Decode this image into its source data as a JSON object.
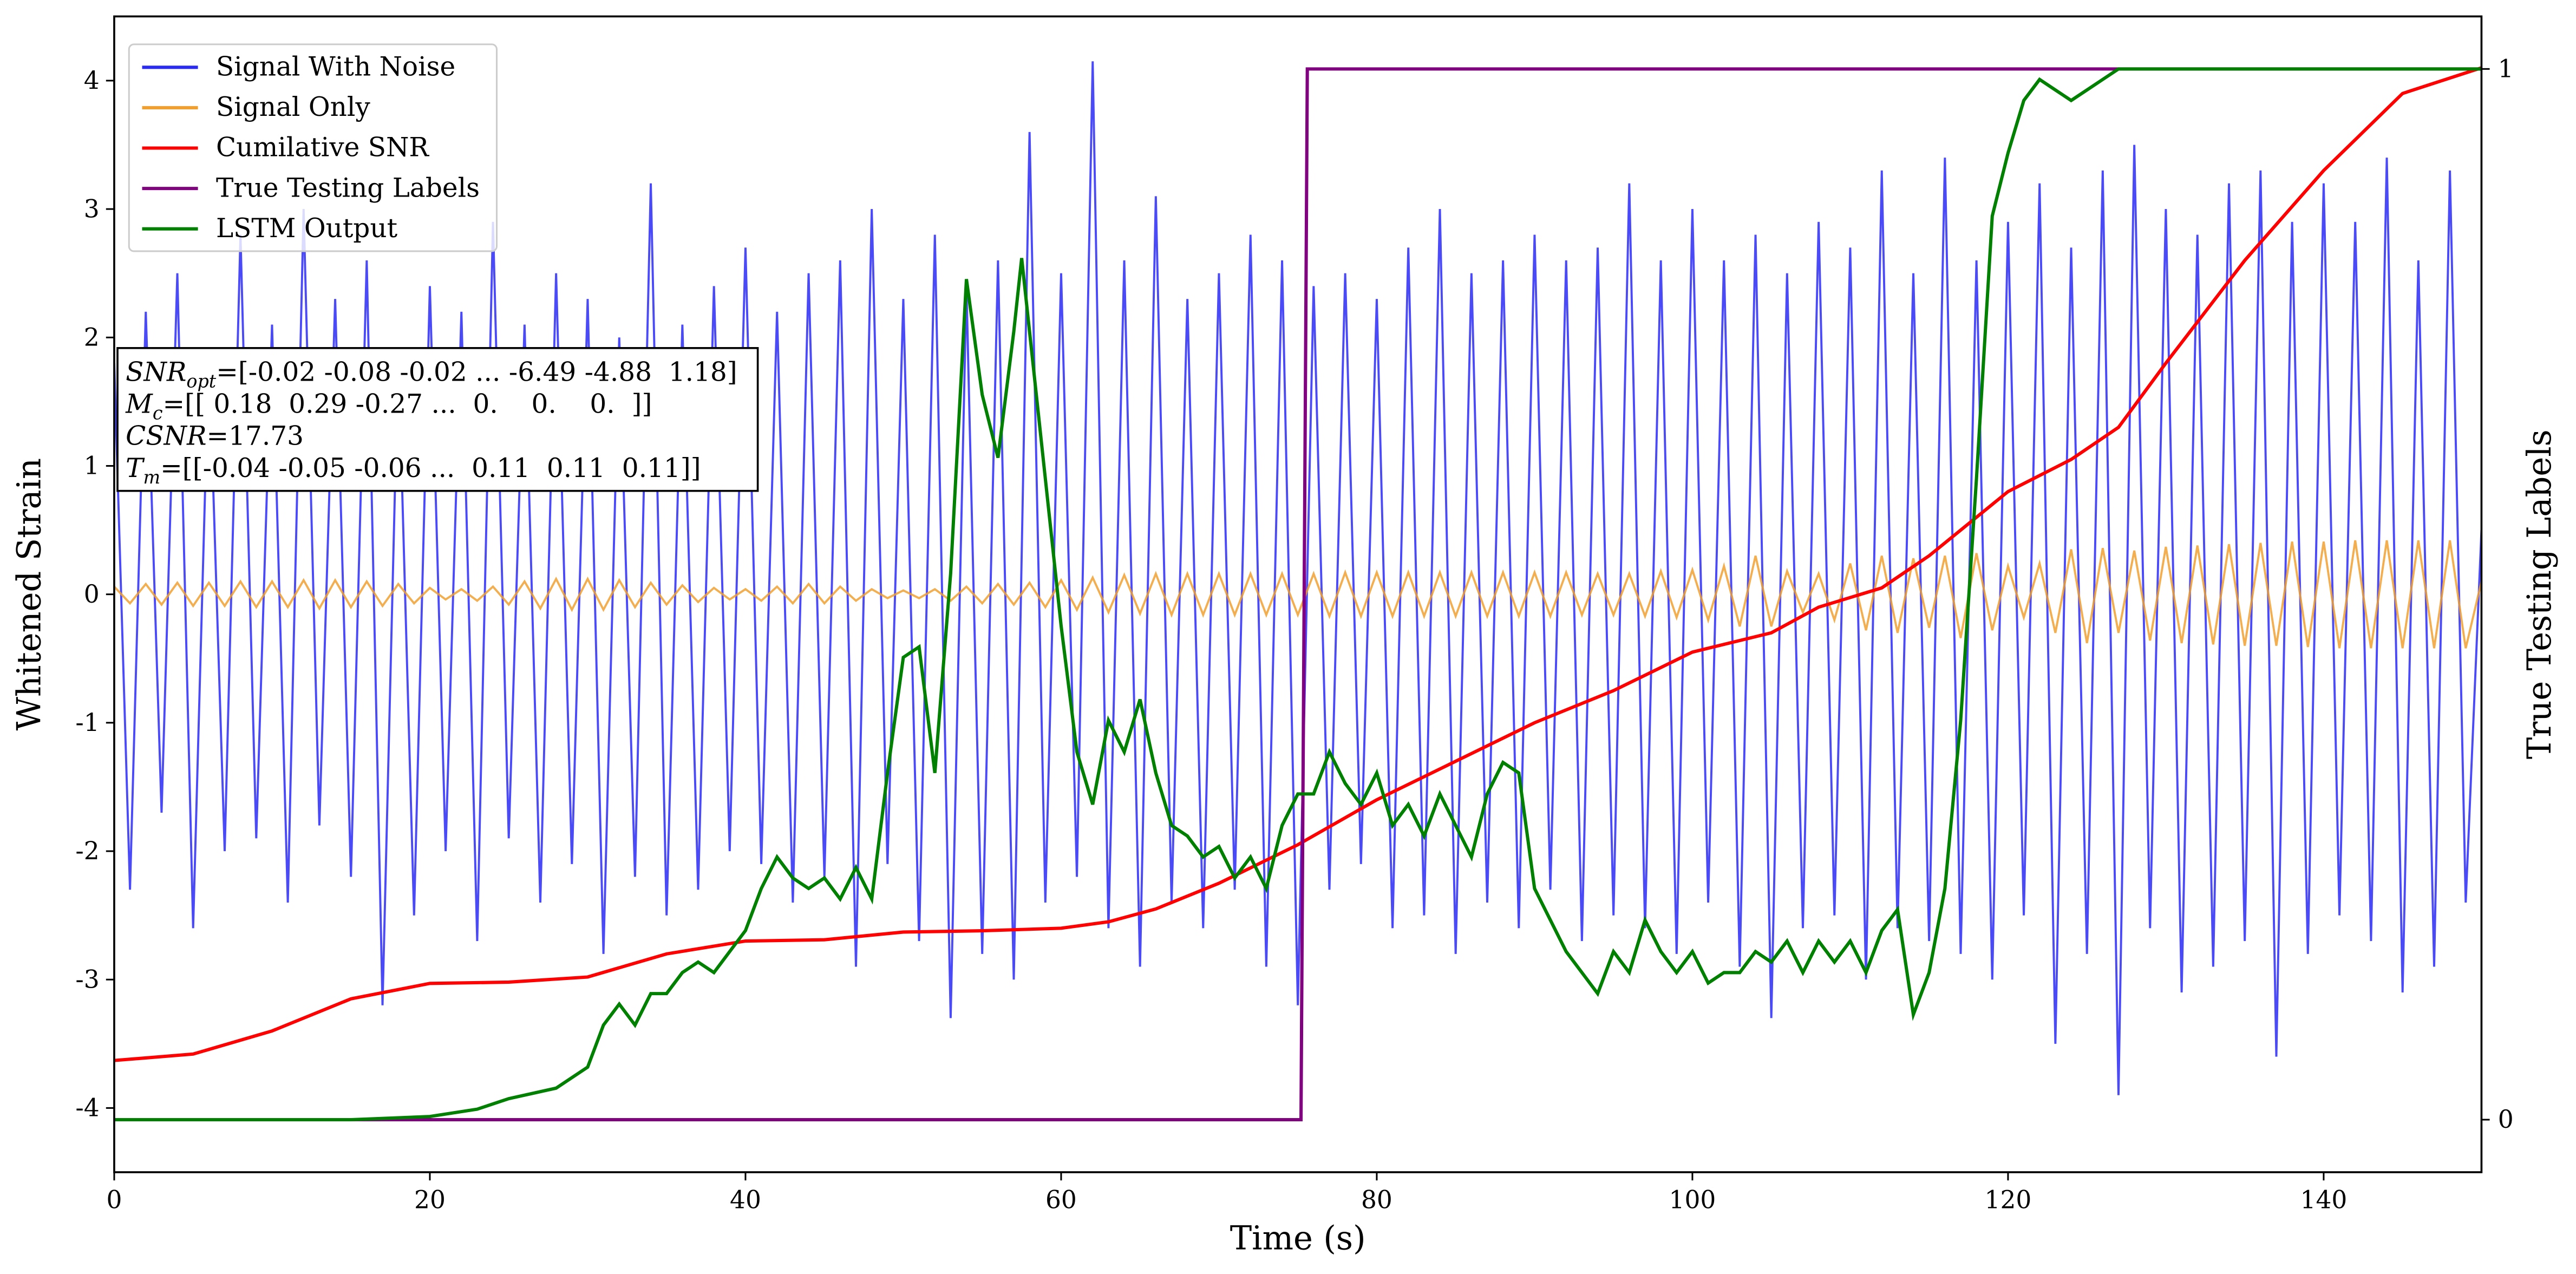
{
  "chart_data": {
    "type": "line",
    "xlabel": "Time (s)",
    "ylabel": "Whitened Strain",
    "y2label": "True Testing Labels",
    "xlim": [
      0,
      150
    ],
    "xticks": [
      0,
      20,
      40,
      60,
      80,
      100,
      120,
      140
    ],
    "ylim": [
      -4.5,
      4.5
    ],
    "yticks": [
      -4,
      -3,
      -2,
      -1,
      0,
      1,
      2,
      3,
      4
    ],
    "y2lim": [
      -0.05,
      1.05
    ],
    "y2ticks": [
      0,
      1
    ],
    "legend": "upper left",
    "annotations": [
      {
        "symbol": "SNR",
        "sub": "opt",
        "text": "=[-0.02 -0.08 -0.02 ... -6.49 -4.88  1.18]"
      },
      {
        "symbol": "M",
        "sub": "c",
        "text": "=[[ 0.18  0.29 -0.27 ...  0.    0.    0.  ]]"
      },
      {
        "symbol": "CSNR",
        "text": "=17.73"
      },
      {
        "symbol": "T",
        "sub": "m",
        "text": "=[[-0.04 -0.05 -0.06 ...  0.11  0.11  0.11]]"
      }
    ],
    "series": [
      {
        "name": "Signal With Noise",
        "color": "#2a2af5",
        "axis": "y",
        "x": [
          0,
          1,
          2,
          3,
          4,
          5,
          6,
          7,
          8,
          9,
          10,
          11,
          12,
          13,
          14,
          15,
          16,
          17,
          18,
          19,
          20,
          21,
          22,
          23,
          24,
          25,
          26,
          27,
          28,
          29,
          30,
          31,
          32,
          33,
          34,
          35,
          36,
          37,
          38,
          39,
          40,
          41,
          42,
          43,
          44,
          45,
          46,
          47,
          48,
          49,
          50,
          51,
          52,
          53,
          54,
          55,
          56,
          57,
          58,
          59,
          60,
          61,
          62,
          63,
          64,
          65,
          66,
          67,
          68,
          69,
          70,
          71,
          72,
          73,
          74,
          75,
          76,
          77,
          78,
          79,
          80,
          81,
          82,
          83,
          84,
          85,
          86,
          87,
          88,
          89,
          90,
          91,
          92,
          93,
          94,
          95,
          96,
          97,
          98,
          99,
          100,
          101,
          102,
          103,
          104,
          105,
          106,
          107,
          108,
          109,
          110,
          111,
          112,
          113,
          114,
          115,
          116,
          117,
          118,
          119,
          120,
          121,
          122,
          123,
          124,
          125,
          126,
          127,
          128,
          129,
          130,
          131,
          132,
          133,
          134,
          135,
          136,
          137,
          138,
          139,
          140,
          141,
          142,
          143,
          144,
          145,
          146,
          147,
          148,
          149,
          150
        ],
        "values": [
          1.8,
          -2.3,
          2.2,
          -1.7,
          2.5,
          -2.6,
          1.9,
          -2.0,
          2.8,
          -1.9,
          2.1,
          -2.4,
          3.0,
          -1.8,
          2.3,
          -2.2,
          2.6,
          -3.2,
          1.9,
          -2.5,
          2.4,
          -2.0,
          2.2,
          -2.7,
          2.9,
          -1.9,
          2.1,
          -2.4,
          2.5,
          -2.1,
          2.3,
          -2.8,
          2.0,
          -2.2,
          3.2,
          -2.5,
          2.1,
          -2.3,
          2.4,
          -2.0,
          2.7,
          -2.1,
          2.2,
          -2.4,
          2.5,
          -2.2,
          2.6,
          -2.9,
          3.0,
          -2.1,
          2.3,
          -2.7,
          2.8,
          -3.3,
          2.4,
          -2.8,
          2.6,
          -3.0,
          3.6,
          -2.4,
          2.5,
          -2.2,
          4.15,
          -2.6,
          2.6,
          -2.9,
          3.1,
          -2.4,
          2.3,
          -2.6,
          2.5,
          -2.3,
          2.8,
          -2.9,
          2.6,
          -3.2,
          2.4,
          -2.3,
          2.5,
          -2.1,
          2.3,
          -2.6,
          2.7,
          -2.5,
          3.0,
          -2.8,
          2.5,
          -2.4,
          2.6,
          -2.6,
          2.8,
          -2.3,
          2.6,
          -2.7,
          2.7,
          -2.5,
          3.2,
          -2.6,
          2.6,
          -2.8,
          3.0,
          -2.4,
          2.6,
          -2.9,
          2.8,
          -3.3,
          2.5,
          -2.6,
          2.9,
          -2.5,
          2.7,
          -3.0,
          3.3,
          -2.6,
          2.5,
          -2.7,
          3.4,
          -2.8,
          2.6,
          -3.0,
          2.9,
          -2.5,
          3.2,
          -3.5,
          2.7,
          -2.8,
          3.3,
          -3.9,
          3.5,
          -2.6,
          3.0,
          -3.1,
          2.8,
          -2.9,
          3.2,
          -2.7,
          3.3,
          -3.6,
          2.9,
          -2.8,
          3.2,
          -2.5,
          2.9,
          -2.7,
          3.4,
          -3.1,
          2.6,
          -2.9,
          3.3,
          -2.4,
          0.5
        ]
      },
      {
        "name": "Signal Only",
        "color": "#f0a030",
        "axis": "y",
        "x": [
          0,
          1,
          2,
          3,
          4,
          5,
          6,
          7,
          8,
          9,
          10,
          11,
          12,
          13,
          14,
          15,
          16,
          17,
          18,
          19,
          20,
          21,
          22,
          23,
          24,
          25,
          26,
          27,
          28,
          29,
          30,
          31,
          32,
          33,
          34,
          35,
          36,
          37,
          38,
          39,
          40,
          41,
          42,
          43,
          44,
          45,
          46,
          47,
          48,
          49,
          50,
          51,
          52,
          53,
          54,
          55,
          56,
          57,
          58,
          59,
          60,
          61,
          62,
          63,
          64,
          65,
          66,
          67,
          68,
          69,
          70,
          71,
          72,
          73,
          74,
          75,
          76,
          77,
          78,
          79,
          80,
          81,
          82,
          83,
          84,
          85,
          86,
          87,
          88,
          89,
          90,
          91,
          92,
          93,
          94,
          95,
          96,
          97,
          98,
          99,
          100,
          101,
          102,
          103,
          104,
          105,
          106,
          107,
          108,
          109,
          110,
          111,
          112,
          113,
          114,
          115,
          116,
          117,
          118,
          119,
          120,
          121,
          122,
          123,
          124,
          125,
          126,
          127,
          128,
          129,
          130,
          131,
          132,
          133,
          134,
          135,
          136,
          137,
          138,
          139,
          140,
          141,
          142,
          143,
          144,
          145,
          146,
          147,
          148,
          149,
          150
        ],
        "values": [
          0.06,
          -0.07,
          0.08,
          -0.08,
          0.09,
          -0.09,
          0.09,
          -0.09,
          0.1,
          -0.1,
          0.1,
          -0.1,
          0.11,
          -0.11,
          0.11,
          -0.1,
          0.1,
          -0.09,
          0.08,
          -0.07,
          0.05,
          -0.04,
          0.04,
          -0.05,
          0.06,
          -0.08,
          0.1,
          -0.11,
          0.12,
          -0.12,
          0.12,
          -0.12,
          0.11,
          -0.1,
          0.09,
          -0.08,
          0.07,
          -0.06,
          0.05,
          -0.04,
          0.04,
          -0.05,
          0.06,
          -0.07,
          0.08,
          -0.07,
          0.06,
          -0.05,
          0.04,
          -0.03,
          0.03,
          -0.03,
          0.04,
          -0.05,
          0.06,
          -0.07,
          0.08,
          -0.08,
          0.09,
          -0.1,
          0.11,
          -0.12,
          0.13,
          -0.14,
          0.15,
          -0.15,
          0.16,
          -0.16,
          0.16,
          -0.16,
          0.16,
          -0.16,
          0.16,
          -0.16,
          0.16,
          -0.16,
          0.16,
          -0.17,
          0.17,
          -0.17,
          0.17,
          -0.17,
          0.17,
          -0.17,
          0.17,
          -0.17,
          0.17,
          -0.17,
          0.17,
          -0.17,
          0.17,
          -0.17,
          0.17,
          -0.16,
          0.16,
          -0.16,
          0.16,
          -0.17,
          0.18,
          -0.18,
          0.19,
          -0.2,
          0.22,
          -0.25,
          0.3,
          -0.25,
          0.18,
          -0.14,
          0.16,
          -0.2,
          0.24,
          -0.28,
          0.3,
          -0.3,
          0.28,
          -0.26,
          0.3,
          -0.34,
          0.32,
          -0.28,
          0.22,
          -0.18,
          0.24,
          -0.3,
          0.35,
          -0.38,
          0.36,
          -0.3,
          0.34,
          -0.36,
          0.37,
          -0.38,
          0.38,
          -0.39,
          0.39,
          -0.4,
          0.4,
          -0.4,
          0.41,
          -0.41,
          0.41,
          -0.42,
          0.42,
          -0.42,
          0.42,
          -0.42,
          0.42,
          -0.42,
          0.42,
          -0.42,
          0.1
        ]
      },
      {
        "name": "Cumilative SNR",
        "color": "red",
        "axis": "y",
        "x": [
          0,
          5,
          10,
          15,
          20,
          25,
          30,
          35,
          40,
          45,
          50,
          55,
          60,
          63,
          66,
          70,
          75,
          80,
          85,
          90,
          95,
          100,
          105,
          108,
          112,
          115,
          118,
          120,
          124,
          127,
          130,
          135,
          140,
          145,
          150
        ],
        "values": [
          -3.63,
          -3.58,
          -3.4,
          -3.15,
          -3.03,
          -3.02,
          -2.98,
          -2.8,
          -2.7,
          -2.69,
          -2.63,
          -2.62,
          -2.6,
          -2.55,
          -2.45,
          -2.25,
          -1.95,
          -1.6,
          -1.3,
          -1.0,
          -0.75,
          -0.45,
          -0.3,
          -0.1,
          0.05,
          0.3,
          0.6,
          0.8,
          1.05,
          1.3,
          1.8,
          2.6,
          3.3,
          3.9,
          4.1
        ]
      },
      {
        "name": "True Testing Labels",
        "color": "purple",
        "axis": "y2",
        "x": [
          0,
          75.2,
          75.6,
          150
        ],
        "values": [
          0,
          0,
          1,
          1
        ]
      },
      {
        "name": "LSTM Output",
        "color": "green",
        "axis": "y2",
        "x": [
          0,
          15,
          20,
          23,
          25,
          28,
          30,
          31,
          32,
          33,
          34,
          35,
          36,
          37,
          38,
          39,
          40,
          41,
          42,
          43,
          44,
          45,
          46,
          47,
          48,
          49,
          50,
          51,
          52,
          53,
          54,
          55,
          56,
          57,
          57.5,
          58,
          59,
          60,
          61,
          62,
          63,
          64,
          65,
          66,
          67,
          68,
          69,
          70,
          71,
          72,
          73,
          74,
          75,
          76,
          77,
          78,
          79,
          80,
          81,
          82,
          83,
          84,
          85,
          86,
          87,
          88,
          89,
          90,
          91,
          92,
          93,
          94,
          95,
          96,
          97,
          98,
          99,
          100,
          101,
          102,
          103,
          104,
          105,
          106,
          107,
          108,
          109,
          110,
          111,
          112,
          113,
          114,
          115,
          116,
          117,
          118,
          119,
          120,
          121,
          122,
          123,
          124,
          125,
          126,
          127,
          150
        ],
        "values": [
          0,
          0,
          0.003,
          0.01,
          0.02,
          0.03,
          0.05,
          0.09,
          0.11,
          0.09,
          0.12,
          0.12,
          0.14,
          0.15,
          0.14,
          0.16,
          0.18,
          0.22,
          0.25,
          0.23,
          0.22,
          0.23,
          0.21,
          0.24,
          0.21,
          0.33,
          0.44,
          0.45,
          0.33,
          0.52,
          0.8,
          0.69,
          0.63,
          0.75,
          0.82,
          0.75,
          0.61,
          0.47,
          0.35,
          0.3,
          0.38,
          0.35,
          0.4,
          0.33,
          0.28,
          0.27,
          0.25,
          0.26,
          0.23,
          0.25,
          0.22,
          0.28,
          0.31,
          0.31,
          0.35,
          0.32,
          0.3,
          0.33,
          0.28,
          0.3,
          0.27,
          0.31,
          0.28,
          0.25,
          0.31,
          0.34,
          0.33,
          0.22,
          0.19,
          0.16,
          0.14,
          0.12,
          0.16,
          0.14,
          0.19,
          0.16,
          0.14,
          0.16,
          0.13,
          0.14,
          0.14,
          0.16,
          0.15,
          0.17,
          0.14,
          0.17,
          0.15,
          0.17,
          0.14,
          0.18,
          0.2,
          0.1,
          0.14,
          0.22,
          0.38,
          0.61,
          0.86,
          0.92,
          0.97,
          0.99,
          0.98,
          0.97,
          0.98,
          0.99,
          1,
          1
        ]
      }
    ]
  }
}
